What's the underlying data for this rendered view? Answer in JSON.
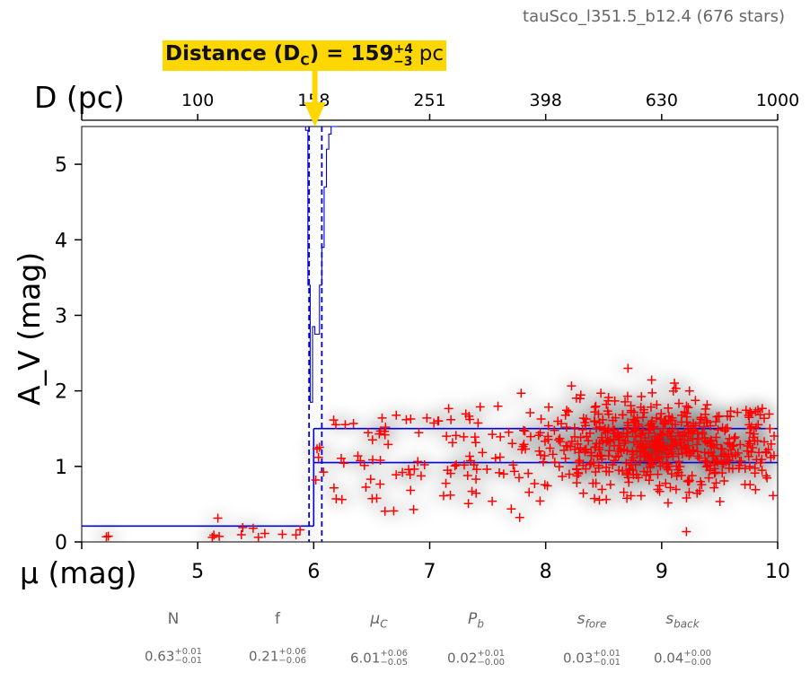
{
  "header": {
    "field_name": "tauSco_l351.5_b12.4 (676 stars)"
  },
  "banner": {
    "prefix": "Distance (D",
    "sub": "C",
    "eq": ") = 159",
    "sup": "+4",
    "sub2": "−3",
    "unit": " pc"
  },
  "colors": {
    "stars": "#ff0000",
    "model": "#0000dd",
    "banner": "#ffd700",
    "density": "#000000"
  },
  "chart_data": {
    "type": "scatter",
    "xlabel": "μ (mag)",
    "ylabel": "A_V (mag)",
    "top_axis_label": "D (pc)",
    "xlim": [
      4,
      10
    ],
    "ylim": [
      0,
      5.5
    ],
    "x_ticks": [
      "5",
      "6",
      "7",
      "8",
      "9",
      "10"
    ],
    "y_ticks": [
      "0",
      "1",
      "2",
      "3",
      "4",
      "5"
    ],
    "top_ticks": [
      {
        "label": "100",
        "mu": 5.0
      },
      {
        "label": "158",
        "mu": 6.0
      },
      {
        "label": "251",
        "mu": 7.0
      },
      {
        "label": "398",
        "mu": 8.0
      },
      {
        "label": "630",
        "mu": 9.0
      },
      {
        "label": "1000",
        "mu": 10.0
      }
    ],
    "model": {
      "cloud_distance_mu": 6.01,
      "mu_lower": 5.96,
      "mu_upper": 6.07,
      "foreground_av": 0.21,
      "background_av_low": 1.05,
      "background_av_high": 1.5,
      "jump_mu": 6.0
    },
    "posterior_histogram": {
      "bins_mu": [
        5.91,
        5.93,
        5.95,
        5.97,
        5.99,
        6.01,
        6.03,
        6.05,
        6.07,
        6.09,
        6.11,
        6.13,
        6.15,
        6.17
      ],
      "av_levels": [
        5.5,
        5.45,
        3.4,
        1.85,
        2.85,
        2.75,
        2.75,
        3.4,
        3.9,
        4.7,
        5.2,
        5.4,
        5.5,
        5.5
      ]
    },
    "stars_sample_count": 676
  },
  "params": [
    {
      "name": "N",
      "italic": false,
      "val": "0.63",
      "sup": "+0.01",
      "sub": "−0.01"
    },
    {
      "name": "f",
      "italic": false,
      "val": "0.21",
      "sup": "+0.06",
      "sub": "−0.06"
    },
    {
      "name": "μ",
      "name_sub": "C",
      "italic": true,
      "val": "6.01",
      "sup": "+0.06",
      "sub": "−0.05"
    },
    {
      "name": "P",
      "name_sub": "b",
      "italic": true,
      "val": "0.02",
      "sup": "+0.01",
      "sub": "−0.00"
    },
    {
      "name": "s",
      "name_sub": "fore",
      "italic": true,
      "val": "0.03",
      "sup": "+0.01",
      "sub": "−0.01"
    },
    {
      "name": "s",
      "name_sub": "back",
      "italic": true,
      "val": "0.04",
      "sup": "+0.00",
      "sub": "−0.00"
    }
  ]
}
